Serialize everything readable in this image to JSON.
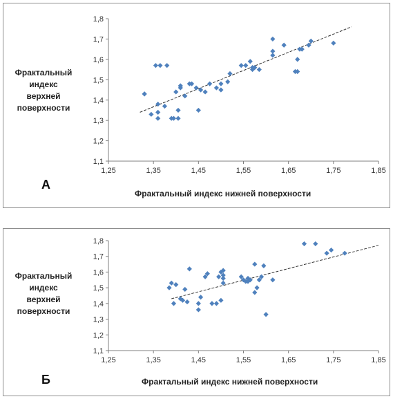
{
  "chart_data": [
    {
      "type": "scatter",
      "panel_label": "А",
      "xlabel": "Фрактальный индекс нижней поверхности",
      "ylabel_lines": [
        "Фрактальный",
        "индекс",
        "верхней",
        "поверхности"
      ],
      "xlim": [
        1.25,
        1.85
      ],
      "ylim": [
        1.1,
        1.8
      ],
      "x_ticks": [
        "1,25",
        "1,35",
        "1,45",
        "1,55",
        "1,65",
        "1,75",
        "1,85"
      ],
      "y_ticks": [
        "1,1",
        "1,2",
        "1,3",
        "1,4",
        "1,5",
        "1,6",
        "1,7",
        "1,8"
      ],
      "grid": false,
      "marker_color": "#4f81bd",
      "trendline": {
        "style": "dashed",
        "x": [
          1.32,
          1.79
        ],
        "y": [
          1.34,
          1.76
        ]
      },
      "series": [
        {
          "x": [
            1.33,
            1.33,
            1.345,
            1.355,
            1.36,
            1.36,
            1.36,
            1.365,
            1.375,
            1.38,
            1.39,
            1.395,
            1.4,
            1.405,
            1.405,
            1.41,
            1.41,
            1.41,
            1.42,
            1.43,
            1.435,
            1.445,
            1.45,
            1.455,
            1.465,
            1.475,
            1.49,
            1.5,
            1.5,
            1.515,
            1.52,
            1.545,
            1.555,
            1.565,
            1.57,
            1.57,
            1.575,
            1.585,
            1.615,
            1.615,
            1.615,
            1.64,
            1.665,
            1.67,
            1.67,
            1.675,
            1.68,
            1.695,
            1.7,
            1.75
          ],
          "y": [
            1.43,
            1.43,
            1.33,
            1.57,
            1.38,
            1.34,
            1.31,
            1.57,
            1.37,
            1.57,
            1.31,
            1.31,
            1.44,
            1.31,
            1.35,
            1.46,
            1.47,
            1.47,
            1.42,
            1.48,
            1.48,
            1.46,
            1.35,
            1.45,
            1.44,
            1.48,
            1.46,
            1.45,
            1.48,
            1.49,
            1.53,
            1.57,
            1.57,
            1.59,
            1.56,
            1.55,
            1.56,
            1.55,
            1.7,
            1.64,
            1.62,
            1.67,
            1.54,
            1.54,
            1.6,
            1.65,
            1.65,
            1.67,
            1.69,
            1.68
          ]
        }
      ]
    },
    {
      "type": "scatter",
      "panel_label": "Б",
      "xlabel": "Фрактальный индекс нижней поверхности",
      "ylabel_lines": [
        "Фрактальный",
        "индекс",
        "верхней",
        "поверхности"
      ],
      "xlim": [
        1.25,
        1.85
      ],
      "ylim": [
        1.1,
        1.8
      ],
      "x_ticks": [
        "1,25",
        "1,35",
        "1,45",
        "1,55",
        "1,65",
        "1,75",
        "1,85"
      ],
      "y_ticks": [
        "1,1",
        "1,2",
        "1,3",
        "1,4",
        "1,5",
        "1,6",
        "1,7",
        "1,8"
      ],
      "grid": false,
      "marker_color": "#4f81bd",
      "trendline": {
        "style": "dashed",
        "x": [
          1.39,
          1.85
        ],
        "y": [
          1.43,
          1.77
        ]
      },
      "series": [
        {
          "x": [
            1.385,
            1.39,
            1.395,
            1.4,
            1.41,
            1.415,
            1.42,
            1.425,
            1.43,
            1.45,
            1.45,
            1.455,
            1.465,
            1.47,
            1.48,
            1.49,
            1.495,
            1.5,
            1.5,
            1.505,
            1.505,
            1.505,
            1.505,
            1.545,
            1.55,
            1.555,
            1.56,
            1.56,
            1.565,
            1.575,
            1.575,
            1.58,
            1.585,
            1.59,
            1.595,
            1.6,
            1.615,
            1.685,
            1.71,
            1.735,
            1.745,
            1.775
          ],
          "y": [
            1.5,
            1.53,
            1.4,
            1.52,
            1.43,
            1.42,
            1.49,
            1.41,
            1.62,
            1.4,
            1.36,
            1.44,
            1.57,
            1.59,
            1.4,
            1.4,
            1.57,
            1.42,
            1.6,
            1.58,
            1.61,
            1.56,
            1.53,
            1.57,
            1.55,
            1.54,
            1.56,
            1.54,
            1.55,
            1.65,
            1.47,
            1.5,
            1.55,
            1.57,
            1.64,
            1.33,
            1.55,
            1.78,
            1.78,
            1.72,
            1.74,
            1.72
          ]
        }
      ]
    }
  ]
}
